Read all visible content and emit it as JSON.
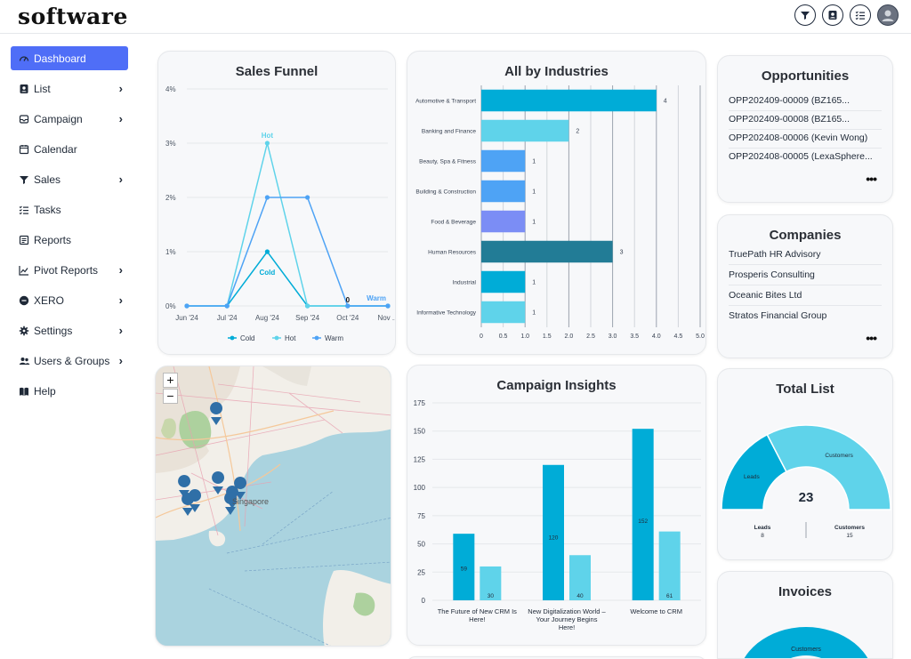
{
  "app": {
    "logo": "software"
  },
  "colors": {
    "accent": "#4f6ef7",
    "cyan": "#00acd7",
    "light_cyan": "#5fd3ea",
    "blue": "#4ea3f5",
    "teal_dark": "#227c96",
    "periwinkle": "#7b8df5"
  },
  "top_icons": [
    "funnel-icon",
    "contact-card-icon",
    "checklist-icon",
    "user-avatar-icon"
  ],
  "sidebar": {
    "items": [
      {
        "label": "Dashboard",
        "icon": "dashboard-icon",
        "chevron": false
      },
      {
        "label": "List",
        "icon": "contact-card-icon",
        "chevron": true
      },
      {
        "label": "Campaign",
        "icon": "inbox-icon",
        "chevron": true
      },
      {
        "label": "Calendar",
        "icon": "calendar-icon",
        "chevron": false
      },
      {
        "label": "Sales",
        "icon": "funnel-icon",
        "chevron": true
      },
      {
        "label": "Tasks",
        "icon": "tasks-icon",
        "chevron": false
      },
      {
        "label": "Reports",
        "icon": "reports-icon",
        "chevron": false
      },
      {
        "label": "Pivot Reports",
        "icon": "chart-line-icon",
        "chevron": true
      },
      {
        "label": "XERO",
        "icon": "xero-icon",
        "chevron": true
      },
      {
        "label": "Settings",
        "icon": "gear-icon",
        "chevron": true
      },
      {
        "label": "Users & Groups",
        "icon": "users-icon",
        "chevron": true
      },
      {
        "label": "Help",
        "icon": "help-book-icon",
        "chevron": false
      }
    ]
  },
  "sales_funnel": {
    "title": "Sales Funnel"
  },
  "industries": {
    "title": "All by Industries"
  },
  "opportunities": {
    "title": "Opportunities",
    "items": [
      "OPP202409-00009 (BZ165...",
      "OPP202409-00008 (BZ165...",
      "OPP202408-00006 (Kevin Wong)",
      "OPP202408-00005 (LexaSphere..."
    ],
    "more": "•••"
  },
  "companies": {
    "title": "Companies",
    "items": [
      "TruePath HR Advisory",
      "Prosperis Consulting",
      "Oceanic Bites Ltd",
      "Stratos Financial Group"
    ],
    "more": "•••"
  },
  "campaign_insights": {
    "title": "Campaign Insights"
  },
  "total_list": {
    "title": "Total List",
    "total": "23",
    "legend": [
      {
        "label": "Leads",
        "value": "8"
      },
      {
        "label": "Customers",
        "value": "15"
      }
    ]
  },
  "invoices": {
    "title": "Invoices",
    "segment_label": "Customers"
  },
  "map": {
    "zoom_in": "+",
    "zoom_out": "−",
    "label": "Singapore"
  },
  "chart_data": [
    {
      "type": "line",
      "title": "Sales Funnel",
      "x": [
        "Jun '24",
        "Jul '24",
        "Aug '24",
        "Sep '24",
        "Oct '24",
        "Nov ..."
      ],
      "yticks": [
        "0%",
        "1%",
        "2%",
        "3%",
        "4%"
      ],
      "ylim": [
        0,
        4
      ],
      "series": [
        {
          "name": "Cold",
          "color": "#00acd7",
          "values": [
            0,
            0,
            1,
            0,
            0,
            0
          ]
        },
        {
          "name": "Hot",
          "color": "#5fd3ea",
          "values": [
            0,
            0,
            3,
            0,
            0,
            0
          ]
        },
        {
          "name": "Warm",
          "color": "#4ea3f5",
          "values": [
            0,
            0,
            2,
            2,
            0,
            0
          ]
        }
      ],
      "point_labels": [
        {
          "text": "Hot",
          "series": "Hot",
          "index": 2
        },
        {
          "text": "Cold",
          "series": "Cold",
          "index": 2
        },
        {
          "text": "0",
          "series": "Cold",
          "index": 4
        },
        {
          "text": "Warm",
          "series": "Warm",
          "index": 5
        }
      ],
      "legend": "bottom"
    },
    {
      "type": "bar",
      "orientation": "horizontal",
      "title": "All by Industries",
      "categories": [
        "Automotive & Transport",
        "Banking and Finance",
        "Beauty, Spa & Fitness",
        "Building & Construction",
        "Food & Beverage",
        "Human Resources",
        "Industrial",
        "Informative Technology"
      ],
      "values": [
        4,
        2,
        1,
        1,
        1,
        3,
        1,
        1
      ],
      "colors": [
        "#00acd7",
        "#5fd3ea",
        "#4ea3f5",
        "#4ea3f5",
        "#7b8df5",
        "#227c96",
        "#00acd7",
        "#5fd3ea"
      ],
      "xticks": [
        "0",
        "0.5",
        "1.0",
        "1.5",
        "2.0",
        "2.5",
        "3.0",
        "3.5",
        "4.0",
        "4.5",
        "5.0"
      ],
      "xlim": [
        0,
        5
      ],
      "grid": true
    },
    {
      "type": "bar",
      "title": "Campaign Insights",
      "categories": [
        [
          "The Future of New CRM Is",
          "Here!"
        ],
        [
          "New Digitalization World –",
          "Your Journey Begins",
          "Here!"
        ],
        [
          "Welcome to CRM"
        ]
      ],
      "series": [
        {
          "color": "#00acd7",
          "values": [
            59,
            120,
            152
          ],
          "labels": [
            "59",
            "120",
            "152"
          ]
        },
        {
          "color": "#5fd3ea",
          "values": [
            30,
            40,
            61
          ],
          "labels": [
            "30",
            "40",
            "61"
          ]
        }
      ],
      "yticks": [
        "0",
        "25",
        "50",
        "75",
        "100",
        "125",
        "150",
        "175"
      ],
      "ylim": [
        0,
        175
      ]
    },
    {
      "type": "pie",
      "variant": "half-donut",
      "title": "Total List",
      "slices": [
        {
          "label": "Leads",
          "value": 8,
          "color": "#00acd7"
        },
        {
          "label": "Customers",
          "value": 15,
          "color": "#5fd3ea"
        }
      ],
      "center_label": "23"
    }
  ]
}
